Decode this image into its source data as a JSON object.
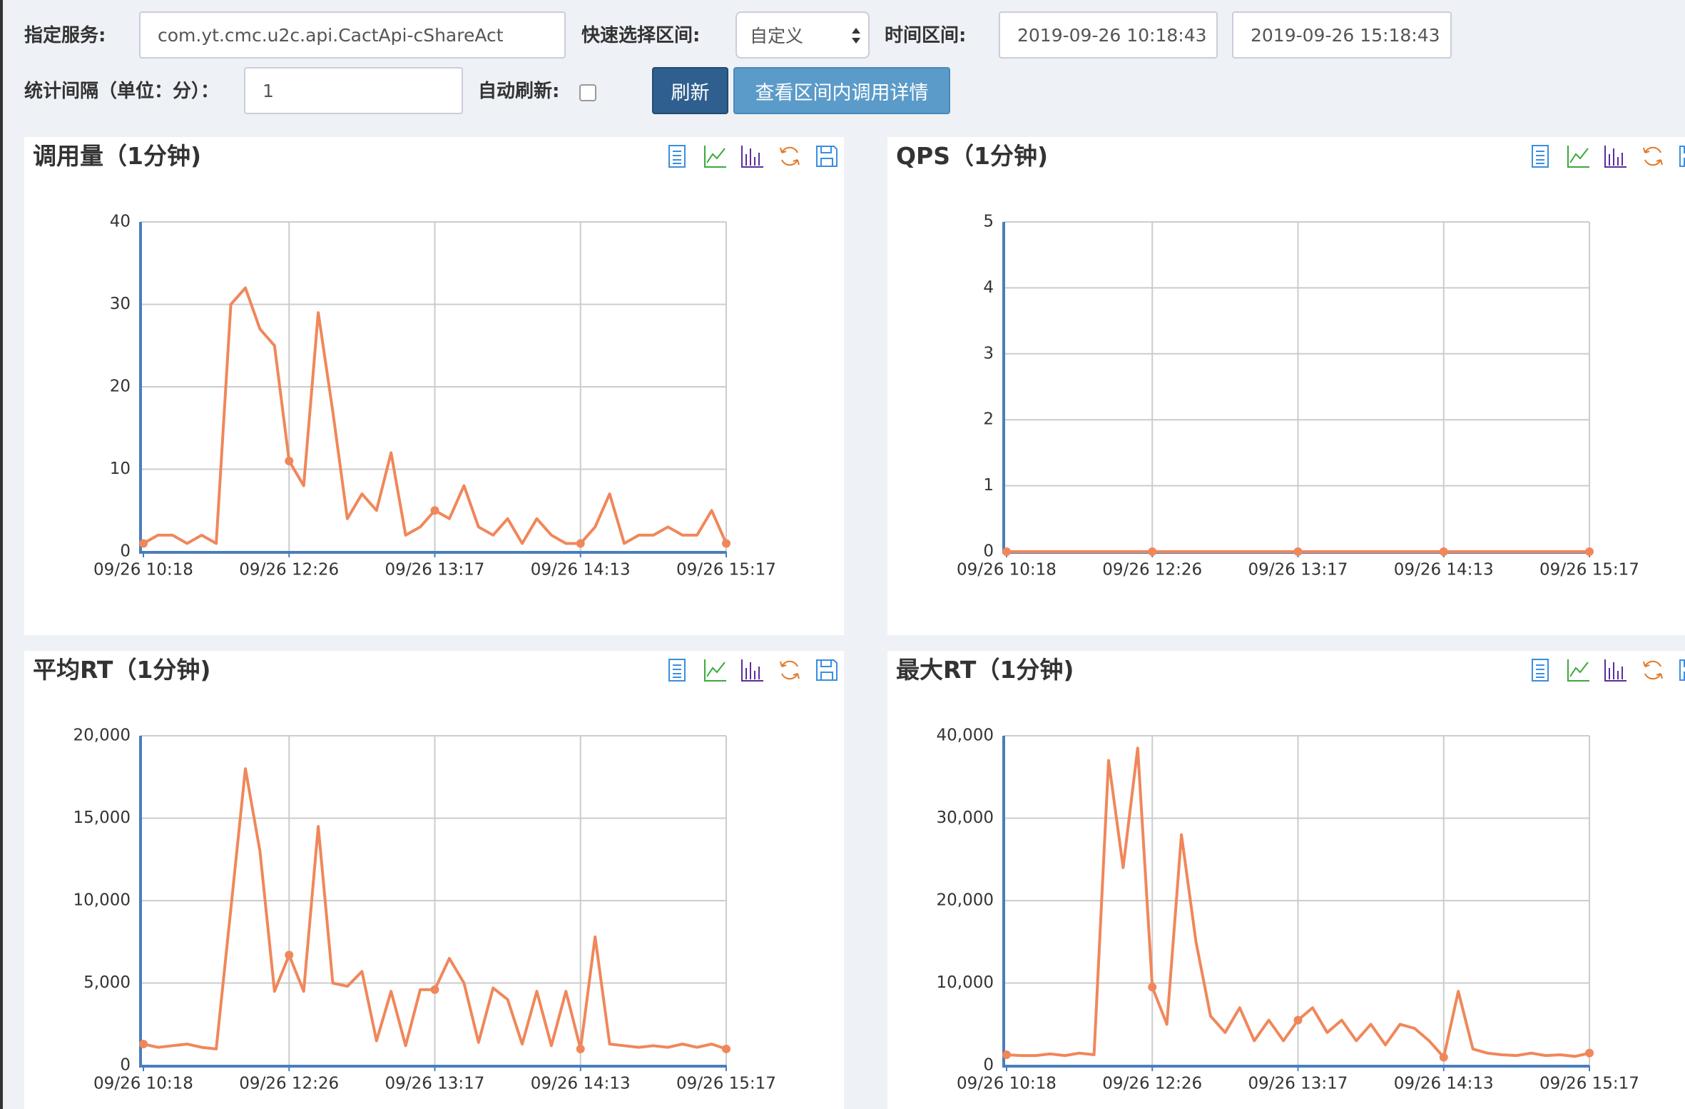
{
  "form": {
    "service_label": "指定服务:",
    "service": "com.yt.cmc.u2c.api.CactApi-cShareAct",
    "range_label": "快速选择区间:",
    "range": "自定义",
    "time_label": "时间区间:",
    "start": "2019-09-26 10:18:43",
    "end": "2019-09-26 15:18:43",
    "interval_label": "统计间隔（单位：分）：",
    "interval": "1",
    "auto_label": "自动刷新:",
    "refresh_button": "刷新",
    "detail_button": "查看区间内调用详情"
  },
  "chart_data": [
    {
      "type": "line",
      "title": "调用量（1分钟)",
      "color": "#f0875a",
      "grid": true,
      "categories": [
        "09/26 10:18",
        null,
        null,
        null,
        null,
        null,
        null,
        null,
        null,
        null,
        "09/26 12:26",
        null,
        null,
        null,
        null,
        null,
        null,
        null,
        null,
        null,
        "09/26 13:17",
        null,
        null,
        null,
        null,
        null,
        null,
        null,
        null,
        null,
        "09/26 14:13",
        null,
        null,
        null,
        null,
        null,
        null,
        null,
        null,
        null,
        "09/26 15:17"
      ],
      "values": [
        1,
        2,
        2,
        1,
        2,
        1,
        30,
        32,
        27,
        25,
        11,
        8,
        29,
        17,
        4,
        7,
        5,
        12,
        2,
        3,
        5,
        4,
        8,
        3,
        2,
        4,
        1,
        4,
        2,
        1,
        1,
        3,
        7,
        1,
        2,
        2,
        3,
        2,
        2,
        5,
        1
      ],
      "ylim": [
        0,
        40
      ],
      "yticks": [
        0,
        10,
        20,
        30,
        40
      ]
    },
    {
      "type": "line",
      "title": "QPS（1分钟)",
      "color": "#f0875a",
      "grid": true,
      "categories": [
        "09/26 10:18",
        null,
        null,
        null,
        null,
        null,
        null,
        null,
        null,
        null,
        "09/26 12:26",
        null,
        null,
        null,
        null,
        null,
        null,
        null,
        null,
        null,
        "09/26 13:17",
        null,
        null,
        null,
        null,
        null,
        null,
        null,
        null,
        null,
        "09/26 14:13",
        null,
        null,
        null,
        null,
        null,
        null,
        null,
        null,
        null,
        "09/26 15:17"
      ],
      "values": [
        0,
        0,
        0,
        0,
        0,
        0,
        0,
        0,
        0,
        0,
        0,
        0,
        0,
        0,
        0,
        0,
        0,
        0,
        0,
        0,
        0,
        0,
        0,
        0,
        0,
        0,
        0,
        0,
        0,
        0,
        0,
        0,
        0,
        0,
        0,
        0,
        0,
        0,
        0,
        0,
        0
      ],
      "ylim": [
        0,
        5
      ],
      "yticks": [
        0,
        1,
        2,
        3,
        4,
        5
      ]
    },
    {
      "type": "line",
      "title": "平均RT（1分钟)",
      "color": "#f0875a",
      "grid": true,
      "categories": [
        "09/26 10:18",
        null,
        null,
        null,
        null,
        null,
        null,
        null,
        null,
        null,
        "09/26 12:26",
        null,
        null,
        null,
        null,
        null,
        null,
        null,
        null,
        null,
        "09/26 13:17",
        null,
        null,
        null,
        null,
        null,
        null,
        null,
        null,
        null,
        "09/26 14:13",
        null,
        null,
        null,
        null,
        null,
        null,
        null,
        null,
        null,
        "09/26 15:17"
      ],
      "values": [
        1300,
        1100,
        1200,
        1300,
        1100,
        1000,
        9500,
        18000,
        13000,
        4500,
        6700,
        4500,
        14500,
        5000,
        4800,
        5700,
        1500,
        4500,
        1200,
        4600,
        4600,
        6500,
        5000,
        1400,
        4700,
        4000,
        1300,
        4500,
        1200,
        4500,
        1000,
        7800,
        1300,
        1200,
        1100,
        1200,
        1100,
        1300,
        1100,
        1300,
        1000
      ],
      "ylim": [
        0,
        20000
      ],
      "yticks": [
        0,
        {
          "value": 5000,
          "label": "5,000"
        },
        {
          "value": 10000,
          "label": "10,000"
        },
        {
          "value": 15000,
          "label": "15,000"
        },
        {
          "value": 20000,
          "label": "20,000"
        }
      ]
    },
    {
      "type": "line",
      "title": "最大RT（1分钟)",
      "color": "#f0875a",
      "grid": true,
      "categories": [
        "09/26 10:18",
        null,
        null,
        null,
        null,
        null,
        null,
        null,
        null,
        null,
        "09/26 12:26",
        null,
        null,
        null,
        null,
        null,
        null,
        null,
        null,
        null,
        "09/26 13:17",
        null,
        null,
        null,
        null,
        null,
        null,
        null,
        null,
        null,
        "09/26 14:13",
        null,
        null,
        null,
        null,
        null,
        null,
        null,
        null,
        null,
        "09/26 15:17"
      ],
      "values": [
        1300,
        1200,
        1200,
        1400,
        1200,
        1500,
        1300,
        37000,
        24000,
        38500,
        9500,
        5000,
        28000,
        15000,
        6000,
        4000,
        7000,
        3000,
        5500,
        3000,
        5500,
        7000,
        4000,
        5500,
        3000,
        5000,
        2500,
        5000,
        4500,
        3000,
        1000,
        9000,
        2000,
        1500,
        1300,
        1200,
        1500,
        1200,
        1300,
        1100,
        1500
      ],
      "ylim": [
        0,
        40000
      ],
      "yticks": [
        0,
        {
          "value": 10000,
          "label": "10,000"
        },
        {
          "value": 20000,
          "label": "20,000"
        },
        {
          "value": 30000,
          "label": "30,000"
        },
        {
          "value": 40000,
          "label": "40,000"
        }
      ]
    }
  ]
}
